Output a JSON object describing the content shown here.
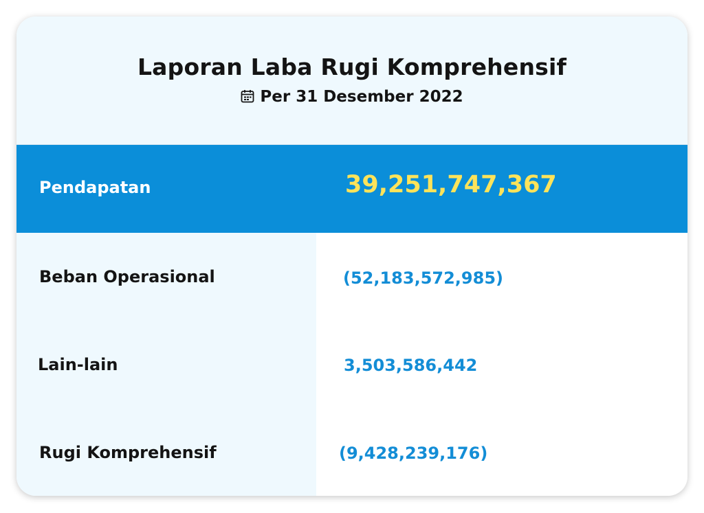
{
  "report": {
    "title": "Laporan Laba Rugi Komprehensif",
    "date_icon": "calendar-icon",
    "date": "Per 31 Desember 2022"
  },
  "highlight": {
    "label": "Pendapatan",
    "value": "39,251,747,367"
  },
  "rows": [
    {
      "label": "Beban Operasional",
      "value": "(52,183,572,985)"
    },
    {
      "label": "Lain-lain",
      "value": "3,503,586,442"
    },
    {
      "label": "Rugi Komprehensif",
      "value": "(9,428,239,176)"
    }
  ],
  "colors": {
    "header_bg": "#eff9fe",
    "band_bg": "#0b8ed9",
    "highlight_value": "#fde35a",
    "row_value": "#138dd6"
  }
}
